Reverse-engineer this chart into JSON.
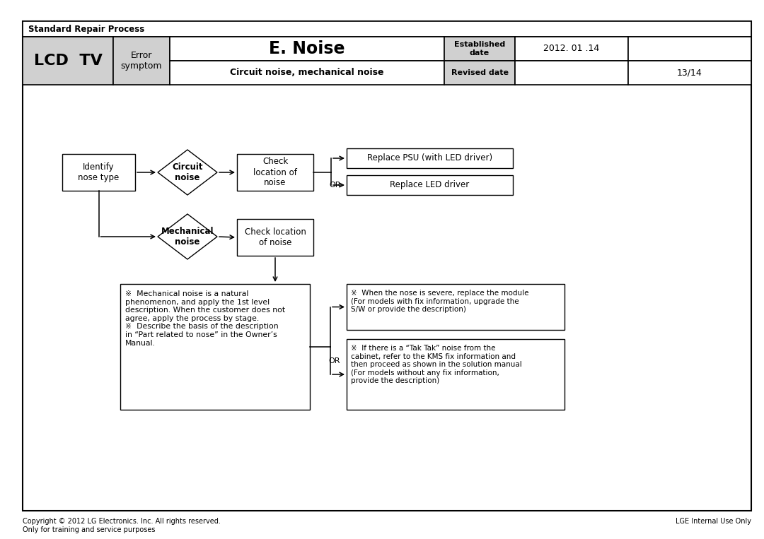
{
  "title_header": "Standard Repair Process",
  "col1_label": "LCD  TV",
  "col2_label": "Error\nsymptom",
  "main_title": "E. Noise",
  "established_label": "Established\ndate",
  "established_date": "2012. 01 .14",
  "sub_title": "Circuit noise, mechanical noise",
  "revised_label": "Revised date",
  "page": "13/14",
  "copyright": "Copyright © 2012 LG Electronics. Inc. All rights reserved.\nOnly for training and service purposes",
  "internal_use": "LGE Internal Use Only",
  "bg_color": "#ffffff",
  "header_bg": "#d0d0d0",
  "identify_text": "Identify\nnose type",
  "circuit_noise_text": "Circuit\nnoise",
  "check_location_circuit": "Check\nlocation of\nnoise",
  "mechanical_noise_text": "Mechanical\nnoise",
  "check_location_mech": "Check location\nof noise",
  "replace_psu": "Replace PSU (with LED driver)",
  "replace_led": "Replace LED driver",
  "mech_desc": "※  Mechanical noise is a natural\nphenomenon, and apply the 1st level\ndescription. When the customer does not\nagree, apply the process by stage.\n※  Describe the basis of the description\nin “Part related to nose” in the Owner’s\nManual.",
  "severe_desc": "※  When the nose is severe, replace the module\n(For models with fix information, upgrade the\nS/W or provide the description)",
  "tak_desc": "※  If there is a “Tak Tak” noise from the\ncabinet, refer to the KMS fix information and\nthen proceed as shown in the solution manual\n(For models without any fix information,\nprovide the description)",
  "or_label": "OR"
}
